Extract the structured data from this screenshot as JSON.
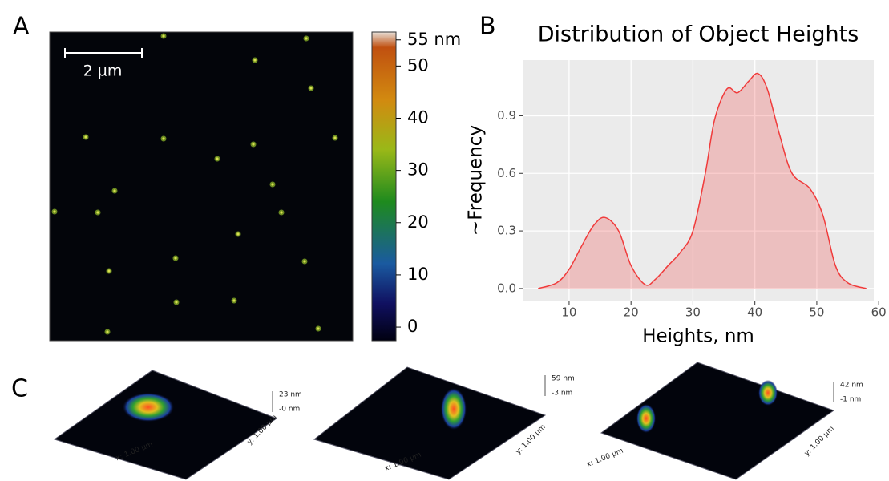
{
  "panel_labels": [
    "A",
    "B",
    "C"
  ],
  "image_a": {
    "scale_bar": "2 µm",
    "colorbar": {
      "lim": [
        -2.6,
        56.5
      ],
      "ticks": [
        {
          "value": 55,
          "label": "55 nm"
        },
        50,
        40,
        30,
        20,
        10,
        0
      ]
    }
  },
  "chart_data": {
    "type": "area",
    "title": "Distribution of Object Heights",
    "x_label": "Heights, nm",
    "y_label": "~Frequency",
    "x": [
      5,
      8,
      10,
      12,
      14,
      15.8,
      18,
      20,
      22.3,
      24,
      26,
      28,
      30,
      32,
      33.5,
      35.5,
      37.2,
      39,
      40.5,
      42,
      44,
      46,
      48.9,
      51,
      53,
      55,
      58
    ],
    "values": [
      0.0,
      0.03,
      0.1,
      0.22,
      0.33,
      0.37,
      0.3,
      0.12,
      0.02,
      0.05,
      0.12,
      0.19,
      0.3,
      0.6,
      0.88,
      1.04,
      1.02,
      1.08,
      1.12,
      1.04,
      0.8,
      0.6,
      0.52,
      0.38,
      0.12,
      0.03,
      0.0
    ],
    "color": "#f03b3b",
    "xlim": [
      2.5,
      59.2
    ],
    "ylim": [
      -0.063,
      1.19
    ],
    "xticks": [
      10,
      20,
      30,
      40,
      50,
      60
    ],
    "yticks": [
      {
        "value": 0,
        "label": "0.0"
      },
      0.3,
      0.6,
      0.9
    ],
    "grid": true
  },
  "panels_c": [
    {
      "max": "23 nm",
      "min": "-0 nm",
      "x_axis": "x: 1.00 µm",
      "y_axis": "y: 1.00 µm"
    },
    {
      "max": "59 nm",
      "min": "-3 nm",
      "x_axis": "x: 1.00 µm",
      "y_axis": "y: 1.00 µm"
    },
    {
      "max": "42 nm",
      "min": "-1 nm",
      "x_axis": "x: 1.00 µm",
      "y_axis": "y: 1.00 µm"
    }
  ]
}
